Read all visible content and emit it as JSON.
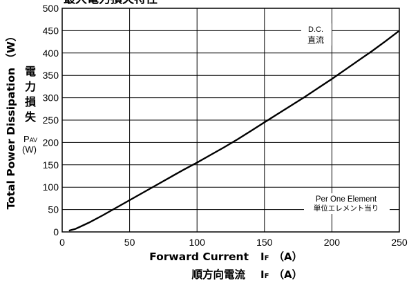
{
  "chart_data": {
    "type": "line",
    "title": "最大電力損失特性",
    "xlabel": "Forward Current",
    "xlabel_jp": "順方向電流",
    "x_symbol": "I",
    "x_subscript": "F",
    "x_unit": "（A）",
    "ylabel": "Total Power Dissipation （W）",
    "ylabel_jp": [
      "電",
      "力",
      "損",
      "失"
    ],
    "y_symbol": "P",
    "y_subscript": "AV",
    "y_unit": "(W)",
    "xlim": [
      0,
      250
    ],
    "ylim": [
      0,
      500
    ],
    "xticks": [
      0,
      50,
      100,
      150,
      200,
      250
    ],
    "yticks": [
      0,
      50,
      100,
      150,
      200,
      250,
      300,
      350,
      400,
      450,
      500
    ],
    "grid": true,
    "annotations": {
      "curve_label_en": "D.C.",
      "curve_label_jp": "直流",
      "note_en": "Per One Element",
      "note_jp": "単位エレメント当り"
    },
    "series": [
      {
        "name": "D.C.",
        "x": [
          5,
          10,
          20,
          30,
          40,
          50,
          60,
          70,
          80,
          90,
          100,
          110,
          120,
          130,
          140,
          150,
          160,
          170,
          180,
          190,
          200,
          210,
          220,
          230,
          240,
          250
        ],
        "y": [
          3,
          7,
          21,
          37,
          54,
          71,
          88,
          105,
          122,
          139,
          155,
          172,
          189,
          207,
          226,
          245,
          264,
          283,
          302,
          322,
          342,
          363,
          384,
          405,
          427,
          450
        ]
      }
    ]
  }
}
